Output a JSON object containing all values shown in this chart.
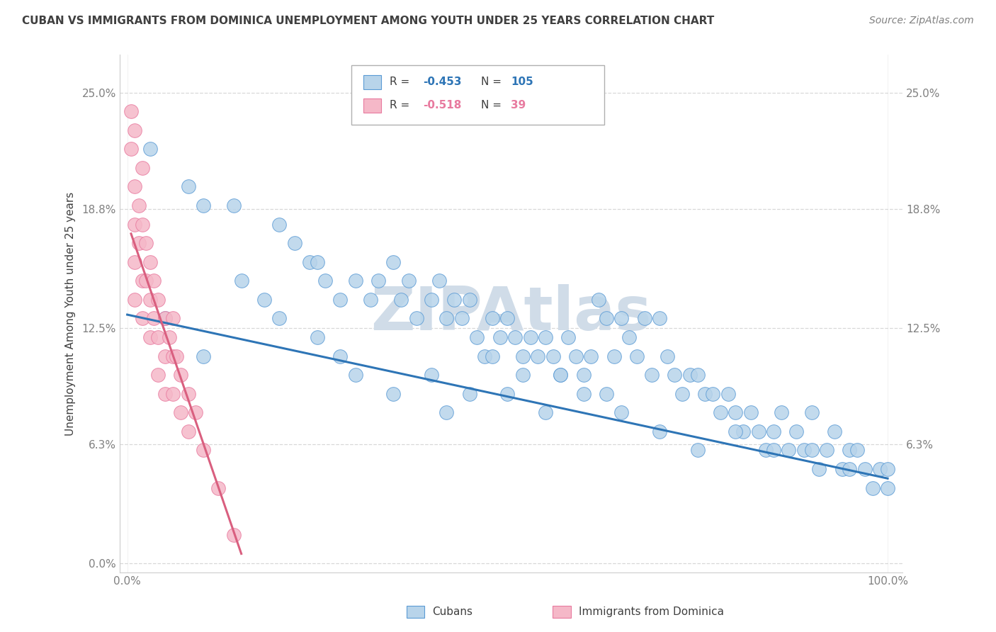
{
  "title": "CUBAN VS IMMIGRANTS FROM DOMINICA UNEMPLOYMENT AMONG YOUTH UNDER 25 YEARS CORRELATION CHART",
  "source": "Source: ZipAtlas.com",
  "ylabel": "Unemployment Among Youth under 25 years",
  "xlim": [
    0,
    100
  ],
  "ylim": [
    0,
    26
  ],
  "ytick_values": [
    0,
    6.3,
    12.5,
    18.8,
    25.0
  ],
  "ytick_labels": [
    "0.0%",
    "6.3%",
    "12.5%",
    "18.8%",
    "25.0%"
  ],
  "right_ytick_values": [
    6.3,
    12.5,
    18.8,
    25.0
  ],
  "right_ytick_labels": [
    "6.3%",
    "12.5%",
    "18.8%",
    "25.0%"
  ],
  "xtick_values": [
    0,
    100
  ],
  "xtick_labels": [
    "0.0%",
    "100.0%"
  ],
  "cubans_R": "-0.453",
  "cubans_N": "105",
  "dominica_R": "-0.518",
  "dominica_N": "39",
  "cuban_color": "#b8d4ea",
  "dominica_color": "#f5b8c8",
  "cuban_edge_color": "#5b9bd5",
  "dominica_edge_color": "#e87a9f",
  "cuban_line_color": "#2e75b6",
  "dominica_line_color": "#d95f7f",
  "background_color": "#ffffff",
  "grid_color": "#d8d8d8",
  "watermark_text": "ZIPAtlas",
  "watermark_color": "#d0dce8",
  "title_color": "#404040",
  "source_color": "#808080",
  "tick_color": "#808080",
  "legend_edge_color": "#b0b0b0",
  "cuban_line_start_y": 13.2,
  "cuban_line_end_y": 4.5,
  "dominica_line_start_x": 0.5,
  "dominica_line_start_y": 17.5,
  "dominica_line_end_x": 15.0,
  "dominica_line_end_y": 0.5,
  "cuban_x": [
    3,
    8,
    10,
    14,
    20,
    22,
    24,
    25,
    26,
    28,
    30,
    32,
    33,
    35,
    36,
    37,
    38,
    40,
    41,
    42,
    43,
    44,
    45,
    46,
    47,
    48,
    49,
    50,
    51,
    52,
    53,
    54,
    55,
    56,
    57,
    58,
    59,
    60,
    61,
    62,
    63,
    64,
    65,
    66,
    67,
    68,
    69,
    70,
    71,
    72,
    73,
    74,
    75,
    76,
    77,
    78,
    79,
    80,
    81,
    82,
    83,
    84,
    85,
    86,
    87,
    88,
    89,
    90,
    91,
    92,
    93,
    94,
    95,
    96,
    97,
    98,
    99,
    100,
    15,
    18,
    20,
    25,
    28,
    30,
    35,
    40,
    42,
    45,
    50,
    55,
    60,
    65,
    70,
    75,
    80,
    85,
    90,
    95,
    100,
    5,
    10,
    48,
    52,
    57,
    63
  ],
  "cuban_y": [
    22,
    20,
    19,
    19,
    18,
    17,
    16,
    16,
    15,
    14,
    15,
    14,
    15,
    16,
    14,
    15,
    13,
    14,
    15,
    13,
    14,
    13,
    14,
    12,
    11,
    13,
    12,
    13,
    12,
    11,
    12,
    11,
    12,
    11,
    10,
    12,
    11,
    10,
    11,
    14,
    13,
    11,
    13,
    12,
    11,
    13,
    10,
    13,
    11,
    10,
    9,
    10,
    10,
    9,
    9,
    8,
    9,
    8,
    7,
    8,
    7,
    6,
    7,
    8,
    6,
    7,
    6,
    8,
    5,
    6,
    7,
    5,
    6,
    6,
    5,
    4,
    5,
    4,
    15,
    14,
    13,
    12,
    11,
    10,
    9,
    10,
    8,
    9,
    9,
    8,
    9,
    8,
    7,
    6,
    7,
    6,
    6,
    5,
    5,
    13,
    11,
    11,
    10,
    10,
    9
  ],
  "dom_x": [
    0.5,
    0.5,
    1,
    1,
    1,
    1,
    1,
    1.5,
    1.5,
    2,
    2,
    2,
    2,
    2.5,
    2.5,
    3,
    3,
    3,
    3.5,
    3.5,
    4,
    4,
    4,
    5,
    5,
    5,
    5.5,
    6,
    6,
    6,
    6.5,
    7,
    7,
    8,
    8,
    9,
    10,
    12,
    14
  ],
  "dom_y": [
    24,
    22,
    23,
    20,
    18,
    16,
    14,
    19,
    17,
    21,
    18,
    15,
    13,
    17,
    15,
    16,
    14,
    12,
    15,
    13,
    14,
    12,
    10,
    13,
    11,
    9,
    12,
    13,
    11,
    9,
    11,
    10,
    8,
    9,
    7,
    8,
    6,
    4,
    1.5
  ]
}
